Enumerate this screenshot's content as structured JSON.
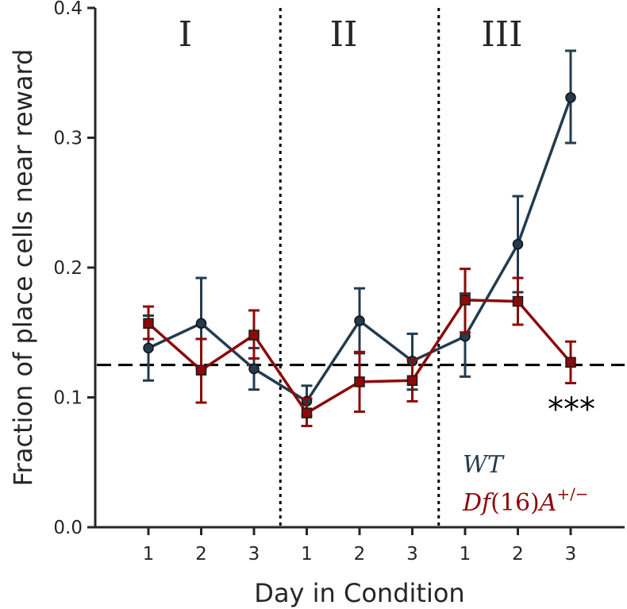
{
  "chart_data": {
    "type": "line",
    "xlabel": "Day in Condition",
    "ylabel": "Fraction of place cells near reward",
    "x_tick_labels": [
      "1",
      "2",
      "3",
      "1",
      "2",
      "3",
      "1",
      "2",
      "3"
    ],
    "y_ticks": [
      "0.0",
      "0.1",
      "0.2",
      "0.3",
      "0.4"
    ],
    "ylim": [
      0,
      0.4
    ],
    "conditions": [
      "I",
      "II",
      "III"
    ],
    "chance_level": 0.125,
    "annotation": "***",
    "grid": false,
    "legend_placement": "bottom-right",
    "series": [
      {
        "name": "WT",
        "color": "#243B4E",
        "marker": "circle",
        "values": [
          0.138,
          0.157,
          0.122,
          0.097,
          0.159,
          0.128,
          0.147,
          0.218,
          0.331
        ],
        "err_low": [
          0.113,
          0.122,
          0.106,
          0.086,
          0.134,
          0.106,
          0.116,
          0.181,
          0.296
        ],
        "err_high": [
          0.163,
          0.192,
          0.138,
          0.109,
          0.184,
          0.149,
          0.18,
          0.255,
          0.367
        ]
      },
      {
        "name_parts": [
          "Df",
          "(16)",
          "A",
          "+/−"
        ],
        "color": "#8B0A0A",
        "marker": "square",
        "values": [
          0.157,
          0.121,
          0.148,
          0.088,
          0.112,
          0.113,
          0.175,
          0.174,
          0.127
        ],
        "err_low": [
          0.145,
          0.096,
          0.13,
          0.078,
          0.089,
          0.097,
          0.15,
          0.156,
          0.111
        ],
        "err_high": [
          0.17,
          0.145,
          0.167,
          0.099,
          0.135,
          0.129,
          0.199,
          0.192,
          0.143
        ]
      }
    ]
  }
}
